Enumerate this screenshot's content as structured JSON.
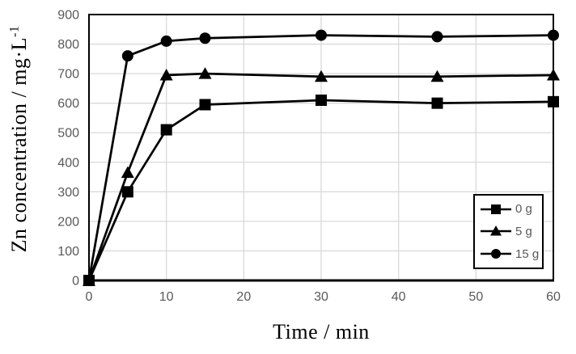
{
  "chart_data": {
    "type": "line",
    "title": "",
    "xlabel": "Time / min",
    "ylabel": "Zn concentration / mg·L⁻¹",
    "ylabel_main": "Zn concentration / mg·L",
    "ylabel_sup": "-1",
    "x": [
      0,
      5,
      10,
      15,
      30,
      45,
      60
    ],
    "series": [
      {
        "name": "0 g",
        "marker": "square",
        "color": "#000000",
        "values": [
          0,
          300,
          510,
          595,
          610,
          600,
          605
        ]
      },
      {
        "name": "5 g",
        "marker": "triangle",
        "color": "#000000",
        "values": [
          0,
          365,
          695,
          700,
          690,
          690,
          695
        ]
      },
      {
        "name": "15 g",
        "marker": "circle",
        "color": "#000000",
        "values": [
          0,
          760,
          810,
          820,
          830,
          825,
          830
        ]
      }
    ],
    "xlim": [
      0,
      60
    ],
    "ylim": [
      0,
      900
    ],
    "xticks": [
      0,
      10,
      20,
      30,
      40,
      50,
      60
    ],
    "yticks": [
      0,
      100,
      200,
      300,
      400,
      500,
      600,
      700,
      800,
      900
    ],
    "grid": true,
    "legend_position": "bottom-right",
    "colors": {
      "series": "#000000",
      "grid": "#d9d9d9",
      "axis": "#000000",
      "tick_label": "#595959",
      "background": "#ffffff"
    }
  }
}
